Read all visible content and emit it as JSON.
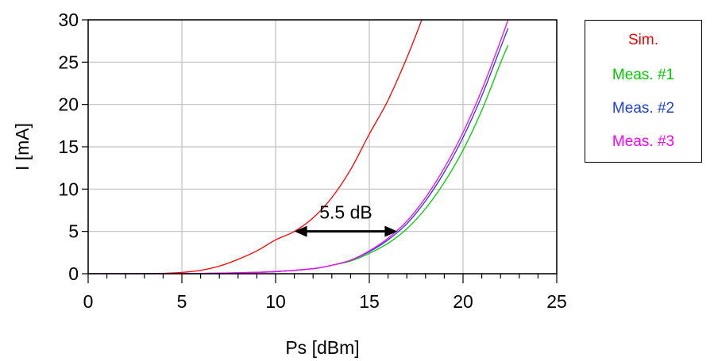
{
  "chart_data": {
    "type": "line",
    "xlabel": "Ps [dBm]",
    "ylabel": "I [mA]",
    "xlim": [
      0,
      25
    ],
    "ylim": [
      0,
      30
    ],
    "xticks": [
      0,
      5,
      10,
      15,
      20,
      25
    ],
    "yticks": [
      0,
      5,
      10,
      15,
      20,
      25,
      30
    ],
    "grid": true,
    "legend_position": "right",
    "annotation": {
      "text": "5.5 dB",
      "arrow_from": [
        11,
        5
      ],
      "arrow_to": [
        16.5,
        5
      ]
    },
    "series": [
      {
        "name": "Sim.",
        "color": "#ff0000",
        "x": [
          0,
          2,
          4,
          5,
          6,
          7,
          8,
          9,
          10,
          11,
          12,
          13,
          14,
          15,
          16,
          17,
          17.8
        ],
        "y": [
          0,
          0.01,
          0.05,
          0.15,
          0.4,
          0.9,
          1.7,
          2.7,
          4.0,
          5.0,
          6.6,
          9.0,
          12.3,
          16.5,
          20.5,
          25.5,
          30
        ]
      },
      {
        "name": "Meas. #1",
        "color": "#00cc00",
        "x": [
          0,
          2,
          4,
          6,
          8,
          10,
          12,
          13,
          14,
          15,
          16,
          17,
          18,
          19,
          20,
          21,
          22,
          22.4
        ],
        "y": [
          0,
          0,
          0.01,
          0.03,
          0.1,
          0.25,
          0.6,
          1.0,
          1.5,
          2.4,
          3.6,
          5.3,
          7.7,
          10.8,
          14.6,
          19.3,
          24.9,
          27
        ]
      },
      {
        "name": "Meas. #2",
        "color": "#1f3fd6",
        "x": [
          0,
          2,
          4,
          6,
          8,
          10,
          12,
          13,
          14,
          15,
          16,
          17,
          18,
          19,
          20,
          21,
          22,
          22.4
        ],
        "y": [
          0,
          0,
          0.01,
          0.03,
          0.1,
          0.25,
          0.6,
          1.0,
          1.6,
          2.6,
          4.0,
          5.9,
          8.6,
          12.0,
          16.1,
          21.0,
          26.7,
          29
        ]
      },
      {
        "name": "Meas. #3",
        "color": "#ff00ff",
        "x": [
          0,
          2,
          4,
          6,
          8,
          10,
          12,
          13,
          14,
          15,
          16,
          17,
          18,
          19,
          20,
          21,
          22,
          22.4
        ],
        "y": [
          0,
          0,
          0.01,
          0.03,
          0.1,
          0.25,
          0.6,
          1.0,
          1.6,
          2.7,
          4.2,
          6.2,
          9.0,
          12.5,
          16.7,
          21.7,
          27.5,
          30
        ]
      }
    ]
  }
}
